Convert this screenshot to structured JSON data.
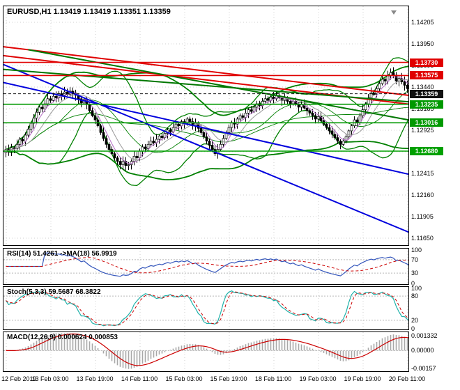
{
  "title": {
    "text": "EURUSD,H1 1.13419 1.13419 1.13351 1.13359"
  },
  "symbol": "EURUSD",
  "timeframe": "H1",
  "ohlc": {
    "open": "1.13419",
    "high": "1.13419",
    "low": "1.13351",
    "close": "1.13359"
  },
  "colors": {
    "background": "#ffffff",
    "grid": "#cfcfcf",
    "candle_up": "#ffffff",
    "candle_down": "#000000",
    "candle_border": "#000000",
    "bollinger": "#008000",
    "ma_fast": "#b36bc4",
    "ma_slow": "#999999",
    "red_line": "#e00000",
    "blue_line": "#0000dd",
    "green_line": "#007700",
    "level_red": "#e00000",
    "level_green": "#009900",
    "current_price": "#111111",
    "rsi_line": "#3355bb",
    "rsi_ma": "#cc0000",
    "stoch_k": "#20b2aa",
    "stoch_d": "#cc0000",
    "macd_hist": "#a8a8a8",
    "macd_signal": "#cc0000"
  },
  "chart_data": {
    "type": "candlestick",
    "main": {
      "y_tick_labels": [
        "1.14205",
        "1.13950",
        "1.13695",
        "1.13440",
        "1.13185",
        "1.12925",
        "1.12670",
        "1.12415",
        "1.12160",
        "1.11905",
        "1.11650"
      ],
      "x_labels": [
        "12 Feb 2019",
        "13 Feb 03:00",
        "13 Feb 19:00",
        "14 Feb 11:00",
        "15 Feb 03:00",
        "15 Feb 19:00",
        "18 Feb 11:00",
        "19 Feb 03:00",
        "19 Feb 19:00",
        "20 Feb 11:00"
      ],
      "closes": [
        1.127,
        1.1268,
        1.1272,
        1.1271,
        1.1276,
        1.1282,
        1.128,
        1.1287,
        1.1294,
        1.1301,
        1.1307,
        1.1314,
        1.132,
        1.1318,
        1.1324,
        1.133,
        1.1328,
        1.1333,
        1.1331,
        1.1336,
        1.1334,
        1.1338,
        1.1335,
        1.1339,
        1.1337,
        1.1334,
        1.133,
        1.1325,
        1.1329,
        1.1323,
        1.1316,
        1.131,
        1.1305,
        1.1298,
        1.129,
        1.1283,
        1.1276,
        1.127,
        1.1265,
        1.126,
        1.1256,
        1.1252,
        1.1256,
        1.1251,
        1.1252,
        1.1256,
        1.1262,
        1.126,
        1.1268,
        1.1273,
        1.1271,
        1.1276,
        1.128,
        1.1278,
        1.1282,
        1.1286,
        1.1284,
        1.1289,
        1.1293,
        1.1291,
        1.1296,
        1.13,
        1.1298,
        1.1303,
        1.1301,
        1.1306,
        1.1303,
        1.1298,
        1.1301,
        1.1295,
        1.129,
        1.1285,
        1.128,
        1.1275,
        1.127,
        1.1265,
        1.127,
        1.1276,
        1.1283,
        1.129,
        1.1296,
        1.1302,
        1.13,
        1.1306,
        1.131,
        1.1308,
        1.1313,
        1.1317,
        1.1315,
        1.132,
        1.1324,
        1.1322,
        1.1327,
        1.133,
        1.1328,
        1.1332,
        1.133,
        1.1334,
        1.1331,
        1.1328,
        1.1331,
        1.1327,
        1.1324,
        1.1327,
        1.1323,
        1.132,
        1.1323,
        1.1319,
        1.1316,
        1.1313,
        1.131,
        1.1306,
        1.1309,
        1.1304,
        1.13,
        1.1296,
        1.1292,
        1.1288,
        1.1284,
        1.128,
        1.1276,
        1.128,
        1.1285,
        1.1292,
        1.1298,
        1.1305,
        1.1302,
        1.131,
        1.1317,
        1.1324,
        1.1331,
        1.1337,
        1.1335,
        1.1342,
        1.1348,
        1.1353,
        1.1351,
        1.1357,
        1.1361,
        1.1358,
        1.1351,
        1.1354,
        1.135,
        1.1346,
        1.1342,
        1.13359
      ],
      "levels": [
        {
          "price": 1.1373,
          "label": "1.13730",
          "color": "#e00000",
          "current": false
        },
        {
          "price": 1.13575,
          "label": "1.13575",
          "color": "#e00000",
          "current": false
        },
        {
          "price": 1.13359,
          "label": "1.13359",
          "color": "#111111",
          "current": true
        },
        {
          "price": 1.13235,
          "label": "1.13235",
          "color": "#009900",
          "current": false
        },
        {
          "price": 1.13016,
          "label": "1.13016",
          "color": "#009900",
          "current": false
        },
        {
          "price": 1.1268,
          "label": "1.12680",
          "color": "#00a000",
          "current": false
        }
      ],
      "trendlines": [
        {
          "i1": -2,
          "p1": 1.1392,
          "i2": 146,
          "p2": 1.13335,
          "color": "#e00000",
          "width": 2
        },
        {
          "i1": -2,
          "p1": 1.13815,
          "i2": 146,
          "p2": 1.1323,
          "color": "#e00000",
          "width": 2
        },
        {
          "i1": -2,
          "p1": 1.1372,
          "i2": 146,
          "p2": 1.117,
          "color": "#0000dd",
          "width": 2
        },
        {
          "i1": -2,
          "p1": 1.135,
          "i2": 146,
          "p2": 1.12395,
          "color": "#0000dd",
          "width": 2
        },
        {
          "i1": -2,
          "p1": 1.1365,
          "i2": 146,
          "p2": 1.1326,
          "color": "#007700",
          "width": 2
        },
        {
          "i1": 8,
          "p1": 1.1388,
          "i2": 146,
          "p2": 1.1304,
          "color": "#007700",
          "width": 2
        }
      ],
      "bollinger": [
        {
          "period": 20,
          "dev": 2
        },
        {
          "period": 44,
          "dev": 2
        }
      ],
      "moving_averages": [
        {
          "period": 5,
          "color": "#b36bc4"
        },
        {
          "period": 10,
          "color": "#999999"
        }
      ]
    },
    "rsi": {
      "label": "RSI(14) 51.4261 ->MA(18) 56.9919",
      "period": 14,
      "ma_period": 18,
      "axis_values": [
        100,
        70,
        30,
        0
      ],
      "axis_labels": [
        "100",
        "70",
        "30",
        "0"
      ],
      "guide_levels": [
        70,
        30
      ]
    },
    "stoch": {
      "label": "Stoch(5,3,3) 59.5687 68.3822",
      "k": 5,
      "slowing": 3,
      "d": 3,
      "axis_values": [
        100,
        80,
        20,
        0
      ],
      "axis_labels": [
        "100",
        "80",
        "20",
        "0"
      ],
      "guide_levels": [
        80,
        20
      ]
    },
    "macd": {
      "label": "MACD(12,26,9) 0.000624 0.000853",
      "fast": 12,
      "slow": 26,
      "signal": 9,
      "axis_values": [
        0.001332,
        0,
        -0.00157
      ],
      "axis_labels": [
        "0.001332",
        "0.00000",
        "-0.00157"
      ],
      "range": [
        -0.00175,
        0.00155
      ]
    }
  }
}
